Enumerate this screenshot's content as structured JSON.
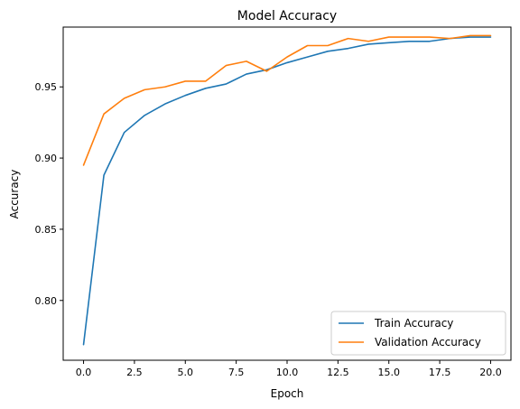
{
  "chart_data": {
    "type": "line",
    "title": "Model Accuracy",
    "xlabel": "Epoch",
    "ylabel": "Accuracy",
    "xlim": [
      -1.0,
      21.0
    ],
    "ylim": [
      0.758,
      0.992
    ],
    "xticks": [
      0.0,
      2.5,
      5.0,
      7.5,
      10.0,
      12.5,
      15.0,
      17.5,
      20.0
    ],
    "xtick_labels": [
      "0.0",
      "2.5",
      "5.0",
      "7.5",
      "10.0",
      "12.5",
      "15.0",
      "17.5",
      "20.0"
    ],
    "yticks": [
      0.8,
      0.85,
      0.9,
      0.95
    ],
    "ytick_labels": [
      "0.80",
      "0.85",
      "0.90",
      "0.95"
    ],
    "grid": false,
    "legend_position": "lower-right",
    "x": [
      0,
      1,
      2,
      3,
      4,
      5,
      6,
      7,
      8,
      9,
      10,
      11,
      12,
      13,
      14,
      15,
      16,
      17,
      18,
      19,
      20
    ],
    "series": [
      {
        "name": "Train Accuracy",
        "color": "#1f77b4",
        "values": [
          0.769,
          0.888,
          0.918,
          0.93,
          0.938,
          0.944,
          0.949,
          0.952,
          0.959,
          0.962,
          0.967,
          0.971,
          0.975,
          0.977,
          0.98,
          0.981,
          0.982,
          0.982,
          0.984,
          0.985,
          0.985
        ]
      },
      {
        "name": "Validation Accuracy",
        "color": "#ff7f0e",
        "values": [
          0.895,
          0.931,
          0.942,
          0.948,
          0.95,
          0.954,
          0.954,
          0.965,
          0.968,
          0.961,
          0.971,
          0.979,
          0.979,
          0.984,
          0.982,
          0.985,
          0.985,
          0.985,
          0.984,
          0.986,
          0.986
        ]
      }
    ]
  }
}
